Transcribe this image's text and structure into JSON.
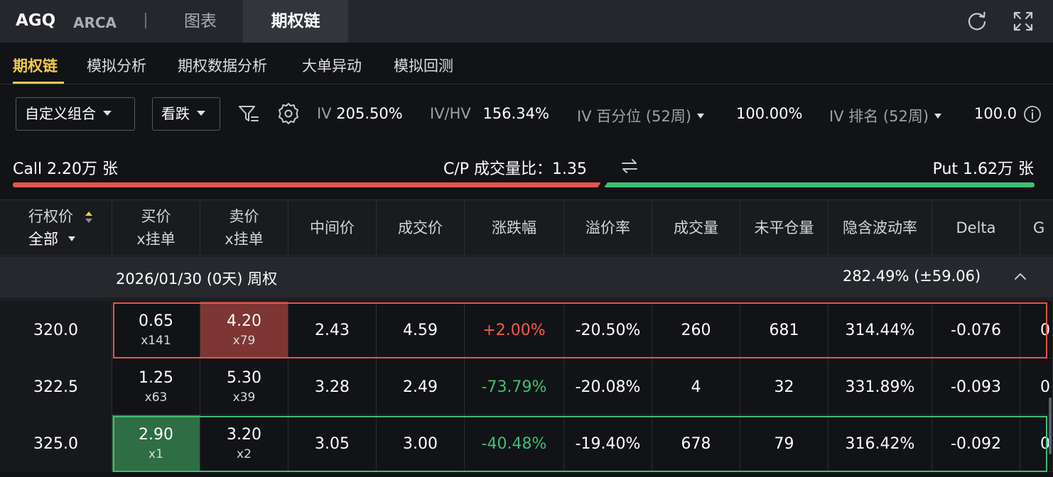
{
  "header": {
    "ticker": "AGQ",
    "exchange": "ARCA",
    "tabs": [
      "图表",
      "期权链"
    ],
    "active_tab": "期权链"
  },
  "subtabs": [
    "期权链",
    "模拟分析",
    "期权数据分析",
    "大单异动",
    "模拟回测"
  ],
  "active_subtab": "期权链",
  "filters": {
    "strategy": "自定义组合",
    "direction": "看跌"
  },
  "stats": {
    "iv_label": "IV",
    "iv_value": "205.50%",
    "ivhv_label": "IV/HV",
    "ivhv_value": "156.34%",
    "iv_pct_label": "IV 百分位 (52周)",
    "iv_pct_value": "100.00%",
    "iv_rank_label": "IV 排名 (52周)",
    "iv_rank_value": "100.0"
  },
  "volume": {
    "call": "Call 2.20万 张",
    "ratio": "C/P 成交量比：1.35",
    "put": "Put 1.62万 张",
    "call_share": 0.576
  },
  "table": {
    "headers": {
      "strike_line1": "行权价",
      "strike_line2": "全部",
      "bid_line1": "买价",
      "bid_line2": "x挂单",
      "ask_line1": "卖价",
      "ask_line2": "x挂单",
      "mid": "中间价",
      "last": "成交价",
      "change": "涨跌幅",
      "premium": "溢价率",
      "volume": "成交量",
      "oi": "未平仓量",
      "iv": "隐含波动率",
      "delta": "Delta",
      "gamma": "G"
    },
    "expiry": {
      "label": "2026/01/30 (0天) 周权",
      "iv": "282.49%  (±59.06)"
    },
    "rows": [
      {
        "strike": "320.0",
        "bid": "0.65",
        "bid_size": "x141",
        "ask": "4.20",
        "ask_size": "x79",
        "mid": "2.43",
        "last": "4.59",
        "change": "+2.00%",
        "premium": "-20.50%",
        "volume": "260",
        "oi": "681",
        "iv": "314.44%",
        "delta": "-0.076",
        "gamma": "0"
      },
      {
        "strike": "322.5",
        "bid": "1.25",
        "bid_size": "x63",
        "ask": "5.30",
        "ask_size": "x39",
        "mid": "3.28",
        "last": "2.49",
        "change": "-73.79%",
        "premium": "-20.08%",
        "volume": "4",
        "oi": "32",
        "iv": "331.89%",
        "delta": "-0.093",
        "gamma": "0"
      },
      {
        "strike": "325.0",
        "bid": "2.90",
        "bid_size": "x1",
        "ask": "3.20",
        "ask_size": "x2",
        "mid": "3.05",
        "last": "3.00",
        "change": "-40.48%",
        "premium": "-19.40%",
        "volume": "678",
        "oi": "79",
        "iv": "316.42%",
        "delta": "-0.092",
        "gamma": "0"
      }
    ]
  },
  "colors": {
    "accent": "#f2c94c",
    "up": "#ef5a4c",
    "down": "#3fbf73"
  }
}
